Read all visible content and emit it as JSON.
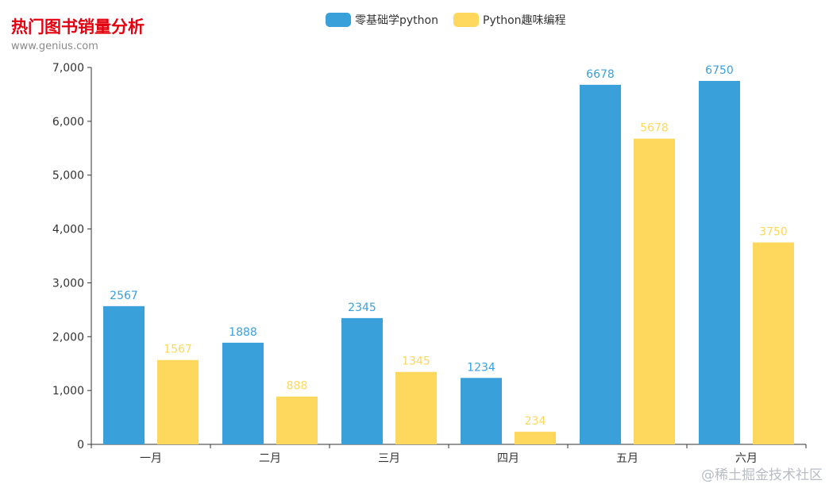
{
  "chart_data": {
    "type": "bar",
    "title": "热门图书销量分析",
    "subtitle": "www.genius.com",
    "categories": [
      "一月",
      "二月",
      "三月",
      "四月",
      "五月",
      "六月"
    ],
    "series": [
      {
        "name": "零基础学python",
        "color": "#3aa0da",
        "values": [
          2567,
          1888,
          2345,
          1234,
          6678,
          6750
        ]
      },
      {
        "name": "Python趣味编程",
        "color": "#fed85d",
        "values": [
          1567,
          888,
          1345,
          234,
          5678,
          3750
        ]
      }
    ],
    "ylim": [
      0,
      7000
    ],
    "yticks": [
      "0",
      "1,000",
      "2,000",
      "3,000",
      "4,000",
      "5,000",
      "6,000",
      "7,000"
    ],
    "xlabel": "",
    "ylabel": "",
    "grid": false,
    "legend_position": "top-center"
  },
  "watermark": "@稀土掘金技术社区"
}
